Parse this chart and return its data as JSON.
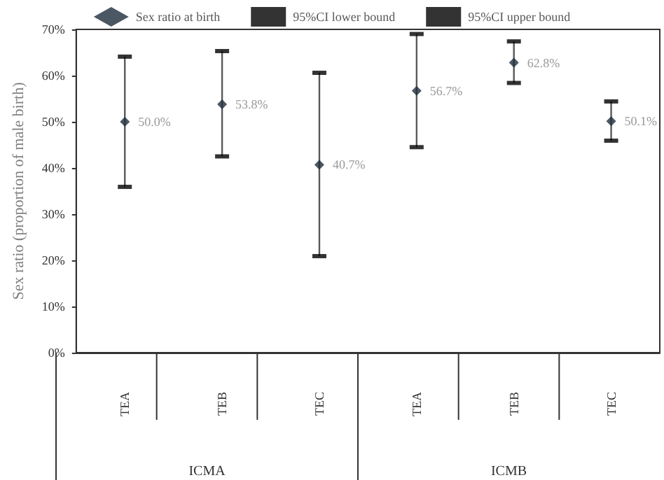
{
  "chart_data": {
    "type": "scatter",
    "categories": [
      "TEA",
      "TEB",
      "TEC",
      "TEA",
      "TEB",
      "TEC"
    ],
    "ylabel": "Sex ratio (proportion of male birth)",
    "annotations": [
      "ICMA",
      "ICMB"
    ],
    "series": [
      {
        "name": "Sex ratio at birth",
        "color": "#1f2d3d",
        "marker": "diamond",
        "values": [
          50.0,
          53.8,
          40.7,
          56.7,
          62.8,
          50.1
        ],
        "value_labels": [
          "50.0%",
          "53.8%",
          "40.7%",
          "56.7%",
          "62.8%",
          "50.1%"
        ]
      },
      {
        "name": "95%CI lower bound",
        "color": "#000000",
        "marker": "square",
        "values": [
          35.9,
          42.5,
          20.9,
          44.5,
          58.4,
          45.9
        ]
      },
      {
        "name": "95%CI upper bound",
        "color": "#000000",
        "marker": "square",
        "values": [
          64.1,
          65.3,
          60.6,
          69.0,
          67.4,
          54.4
        ]
      }
    ],
    "ylim": [
      0,
      70
    ],
    "yticks": [
      {
        "value": 0,
        "label": "0%"
      },
      {
        "value": 10,
        "label": "10%"
      },
      {
        "value": 20,
        "label": "20%"
      },
      {
        "value": 30,
        "label": "30%"
      },
      {
        "value": 40,
        "label": "40%"
      },
      {
        "value": 50,
        "label": "50%"
      },
      {
        "value": 60,
        "label": "60%"
      },
      {
        "value": 70,
        "label": "70%"
      }
    ],
    "grid": false,
    "legend": "top"
  }
}
